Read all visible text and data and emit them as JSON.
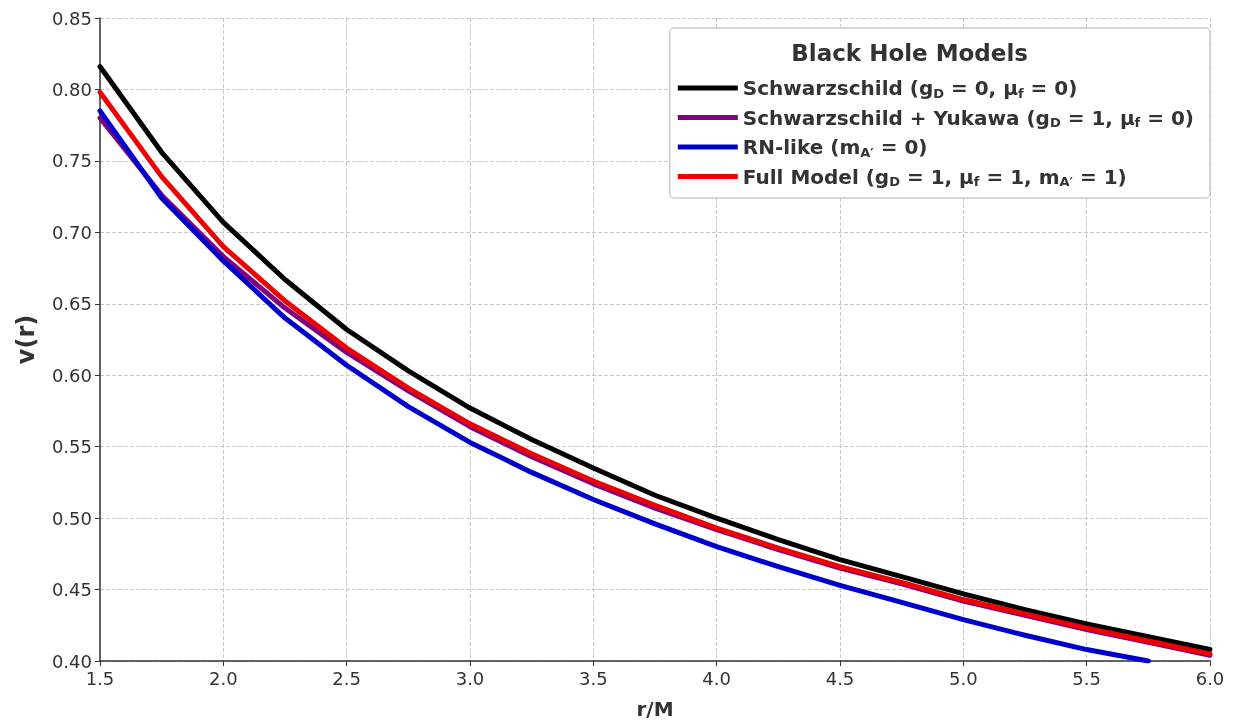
{
  "chart_data": {
    "type": "line",
    "xlabel": "r/M",
    "ylabel": "v(r)",
    "legend_title": "Black Hole Models",
    "x": [
      1.5,
      1.75,
      2.0,
      2.25,
      2.5,
      2.75,
      3.0,
      3.25,
      3.5,
      3.75,
      4.0,
      4.25,
      4.5,
      4.75,
      5.0,
      5.25,
      5.5,
      5.75,
      6.0
    ],
    "series": [
      {
        "name": "Schwarzschild (g$_{D}$ = 0, μ$_{f}$ = 0)",
        "color": "#000000",
        "values": [
          0.816,
          0.756,
          0.707,
          0.667,
          0.632,
          0.603,
          0.577,
          0.555,
          0.535,
          0.516,
          0.5,
          0.485,
          0.471,
          0.459,
          0.447,
          0.436,
          0.426,
          0.417,
          0.408
        ]
      },
      {
        "name": "Schwarzschild + Yukawa (g$_{D}$ = 1, μ$_{f}$ = 0)",
        "color": "#800080",
        "values": [
          0.78,
          0.726,
          0.683,
          0.647,
          0.616,
          0.589,
          0.564,
          0.543,
          0.524,
          0.507,
          0.492,
          0.478,
          0.465,
          0.454,
          0.442,
          0.432,
          0.422,
          0.413,
          0.404
        ]
      },
      {
        "name": "RN-like (m$_{A′}$ = 0)",
        "color": "#0000cc",
        "values": [
          0.785,
          0.724,
          0.68,
          0.64,
          0.607,
          0.578,
          0.553,
          0.532,
          0.513,
          0.496,
          0.48,
          0.466,
          0.453,
          0.441,
          0.429,
          0.418,
          0.408,
          0.4,
          null
        ]
      },
      {
        "name": "Full Model (g$_{D}$ = 1, μ$_{f}$ = 1, m$_{A′}$ = 1)",
        "color": "#ee0000",
        "values": [
          0.798,
          0.739,
          0.69,
          0.652,
          0.619,
          0.591,
          0.566,
          0.545,
          0.526,
          0.509,
          0.493,
          0.479,
          0.466,
          0.455,
          0.443,
          0.433,
          0.423,
          0.414,
          0.405
        ]
      }
    ],
    "xlim": [
      1.5,
      6.0
    ],
    "xticks": [
      {
        "value": 1.5,
        "label": "1.5"
      },
      {
        "value": 2,
        "label": "2.0"
      },
      {
        "value": 2.5,
        "label": "2.5"
      },
      {
        "value": 3,
        "label": "3.0"
      },
      {
        "value": 3.5,
        "label": "3.5"
      },
      {
        "value": 4,
        "label": "4.0"
      },
      {
        "value": 4.5,
        "label": "4.5"
      },
      {
        "value": 5,
        "label": "5.0"
      },
      {
        "value": 5.5,
        "label": "5.5"
      },
      {
        "value": 6,
        "label": "6.0"
      }
    ],
    "ylim": [
      0.4,
      0.85
    ],
    "yticks": [
      {
        "value": 0.4,
        "label": "0.40"
      },
      {
        "value": 0.45,
        "label": "0.45"
      },
      {
        "value": 0.5,
        "label": "0.50"
      },
      {
        "value": 0.55,
        "label": "0.55"
      },
      {
        "value": 0.6,
        "label": "0.60"
      },
      {
        "value": 0.65,
        "label": "0.65"
      },
      {
        "value": 0.7,
        "label": "0.70"
      },
      {
        "value": 0.75,
        "label": "0.75"
      },
      {
        "value": 0.8,
        "label": "0.80"
      },
      {
        "value": 0.85,
        "label": "0.85"
      }
    ],
    "grid": true,
    "legend": "top right",
    "marker": "none",
    "line_style": "solid"
  }
}
